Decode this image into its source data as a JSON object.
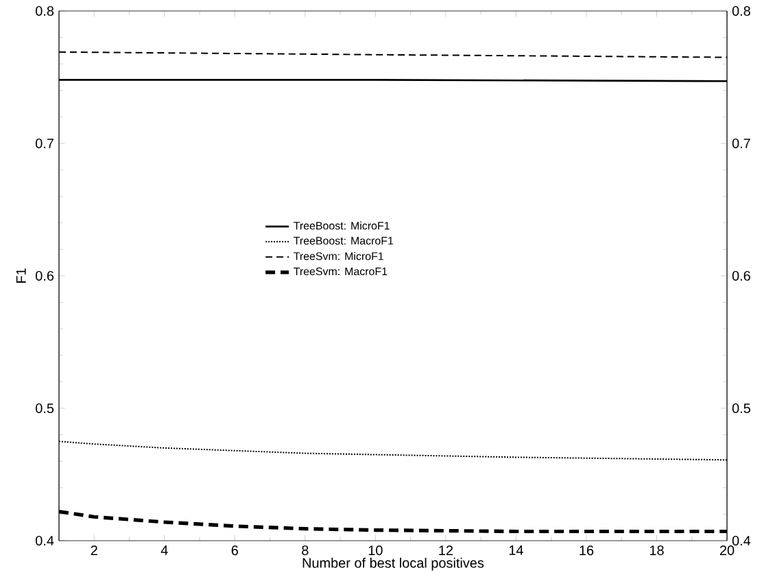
{
  "chart_data": {
    "type": "line",
    "xlabel": "Number of best local positives",
    "ylabel": "F1",
    "xlim": [
      1,
      20
    ],
    "xticks": [
      2,
      4,
      6,
      8,
      10,
      12,
      14,
      16,
      18,
      20
    ],
    "ylim": [
      0.4,
      0.8
    ],
    "yticks": [
      0.4,
      0.5,
      0.6,
      0.7,
      0.8
    ],
    "y2lim": [
      0.4,
      0.8
    ],
    "y2ticks": [
      0.4,
      0.5,
      0.6,
      0.7,
      0.8
    ],
    "legend": "center",
    "grid": false,
    "marker": "none",
    "series": [
      {
        "name": "TreeBoost: MicroF1",
        "color": "#000000",
        "line_style": "solid",
        "x": [
          1,
          10,
          20
        ],
        "values": [
          0.748,
          0.748,
          0.747
        ]
      },
      {
        "name": "TreeBoost: MacroF1",
        "color": "#000000",
        "line_style": "dotted",
        "x": [
          1,
          2,
          4,
          6,
          8,
          10,
          14,
          20
        ],
        "values": [
          0.475,
          0.473,
          0.47,
          0.468,
          0.466,
          0.465,
          0.463,
          0.461
        ]
      },
      {
        "name": "TreeSvm: MicroF1",
        "color": "#000000",
        "line_style": "dashed",
        "x": [
          1,
          10,
          20
        ],
        "values": [
          0.769,
          0.767,
          0.765
        ]
      },
      {
        "name": "TreeSvm: MacroF1",
        "color": "#000000",
        "line_style": "dashed",
        "x": [
          1,
          2,
          3,
          4,
          6,
          8,
          10,
          14,
          20
        ],
        "values": [
          0.422,
          0.418,
          0.416,
          0.414,
          0.411,
          0.409,
          0.408,
          0.407,
          0.407
        ]
      }
    ]
  }
}
